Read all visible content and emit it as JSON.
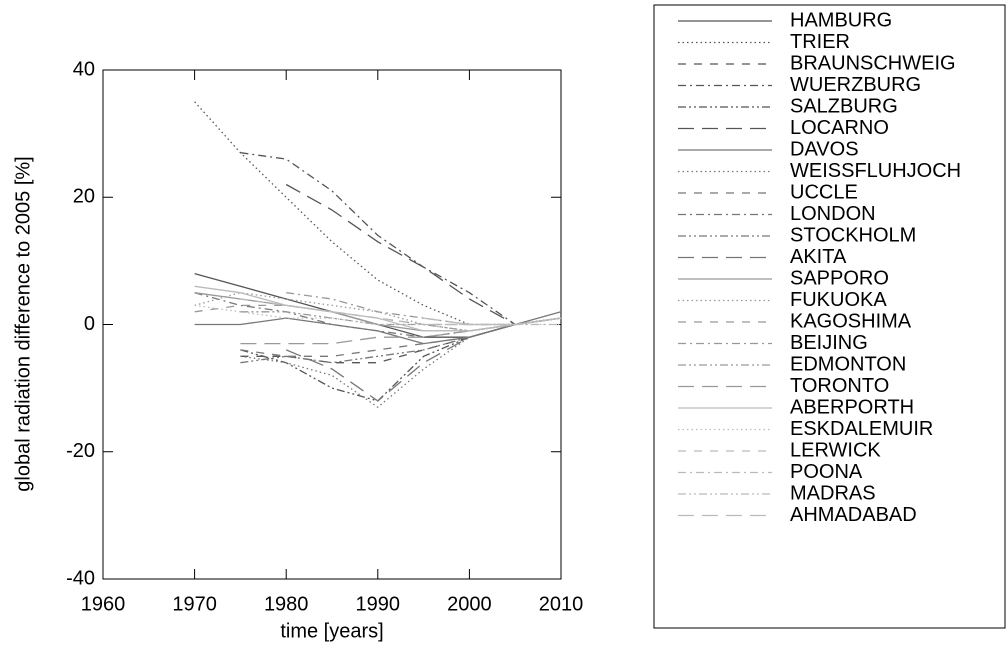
{
  "chart_data": {
    "type": "line",
    "x_label": "time [years]",
    "y_label": "global radiation difference to 2005 [%]",
    "x": [
      1970,
      1975,
      1980,
      1985,
      1990,
      1995,
      2000,
      2005,
      2010
    ],
    "xlim": [
      1960,
      2010
    ],
    "xticks": [
      1960,
      1970,
      1980,
      1990,
      2000,
      2010
    ],
    "ylim": [
      -40,
      40
    ],
    "yticks": [
      -40,
      -20,
      0,
      20,
      40
    ],
    "legend": "outside-right",
    "series": [
      {
        "name": "HAMBURG",
        "color": "#555555",
        "dash": "solid",
        "values": [
          8,
          6,
          4,
          2,
          0,
          -2,
          -2,
          0,
          1
        ]
      },
      {
        "name": "TRIER",
        "color": "#555555",
        "dash": "dotted",
        "values": [
          35,
          27,
          20,
          13,
          7,
          3,
          0,
          0,
          1
        ]
      },
      {
        "name": "BRAUNSCHWEIG",
        "color": "#555555",
        "dash": "dashed",
        "values": [
          null,
          -5,
          -5,
          -6,
          -6,
          -4,
          -2,
          0,
          1
        ]
      },
      {
        "name": "WUERZBURG",
        "color": "#555555",
        "dash": "dashdot",
        "values": [
          null,
          27,
          26,
          21,
          14,
          9,
          5,
          0,
          1
        ]
      },
      {
        "name": "SALZBURG",
        "color": "#555555",
        "dash": "dashdotdot",
        "values": [
          null,
          -4,
          -6,
          -10,
          -12,
          -5,
          -2,
          0,
          1
        ]
      },
      {
        "name": "LOCARNO",
        "color": "#555555",
        "dash": "longdash",
        "values": [
          null,
          null,
          22,
          18,
          13,
          9,
          4,
          0,
          1
        ]
      },
      {
        "name": "DAVOS",
        "color": "#777777",
        "dash": "solid",
        "values": [
          0,
          0,
          1,
          0,
          -1,
          -3,
          -2,
          0,
          2
        ]
      },
      {
        "name": "WEISSFLUHJOCH",
        "color": "#777777",
        "dash": "dotted",
        "values": [
          null,
          -5,
          -6,
          -8,
          -13,
          -7,
          -2,
          0,
          1
        ]
      },
      {
        "name": "UCCLE",
        "color": "#777777",
        "dash": "dashed",
        "values": [
          null,
          -4,
          -5,
          -5,
          -4,
          -3,
          -2,
          0,
          1
        ]
      },
      {
        "name": "LONDON",
        "color": "#777777",
        "dash": "dashdot",
        "values": [
          5,
          3,
          2,
          0,
          -1,
          -2,
          -1,
          0,
          1
        ]
      },
      {
        "name": "STOCKHOLM",
        "color": "#777777",
        "dash": "dashdotdot",
        "values": [
          null,
          -6,
          -5,
          -6,
          -5,
          -4,
          -2,
          0,
          1
        ]
      },
      {
        "name": "AKITA",
        "color": "#777777",
        "dash": "longdash",
        "values": [
          null,
          null,
          -4,
          -7,
          -12,
          -6,
          -2,
          0,
          1
        ]
      },
      {
        "name": "SAPPORO",
        "color": "#999999",
        "dash": "solid",
        "values": [
          5,
          4,
          3,
          2,
          0,
          -1,
          -1,
          0,
          1
        ]
      },
      {
        "name": "FUKUOKA",
        "color": "#999999",
        "dash": "dotted",
        "values": [
          3,
          5,
          4,
          3,
          2,
          0,
          -1,
          0,
          1
        ]
      },
      {
        "name": "KAGOSHIMA",
        "color": "#999999",
        "dash": "dashed",
        "values": [
          2,
          3,
          3,
          2,
          1,
          0,
          0,
          0,
          1
        ]
      },
      {
        "name": "BEIJING",
        "color": "#999999",
        "dash": "dashdot",
        "values": [
          null,
          null,
          5,
          4,
          2,
          1,
          0,
          0,
          1
        ]
      },
      {
        "name": "EDMONTON",
        "color": "#999999",
        "dash": "dashdotdot",
        "values": [
          null,
          2,
          2,
          1,
          0,
          0,
          -1,
          0,
          1
        ]
      },
      {
        "name": "TORONTO",
        "color": "#999999",
        "dash": "longdash",
        "values": [
          null,
          -3,
          -3,
          -3,
          -2,
          -2,
          -1,
          0,
          1
        ]
      },
      {
        "name": "ABERPORTH",
        "color": "#bbbbbb",
        "dash": "solid",
        "values": [
          6,
          5,
          3,
          2,
          1,
          -1,
          -1,
          0,
          1
        ]
      },
      {
        "name": "ESKDALEMUIR",
        "color": "#bbbbbb",
        "dash": "dotted",
        "values": [
          3,
          2,
          1,
          1,
          0,
          0,
          0,
          0,
          0
        ]
      },
      {
        "name": "LERWICK",
        "color": "#bbbbbb",
        "dash": "dashed",
        "values": [
          null,
          4,
          3,
          2,
          1,
          0,
          0,
          0,
          1
        ]
      },
      {
        "name": "POONA",
        "color": "#bbbbbb",
        "dash": "dashdot",
        "values": [
          null,
          null,
          null,
          null,
          null,
          -1,
          -1,
          0,
          0
        ]
      },
      {
        "name": "MADRAS",
        "color": "#bbbbbb",
        "dash": "dashdotdot",
        "values": [
          null,
          null,
          null,
          null,
          null,
          0,
          0,
          0,
          1
        ]
      },
      {
        "name": "AHMADABAD",
        "color": "#bbbbbb",
        "dash": "longdash",
        "values": [
          null,
          null,
          null,
          null,
          null,
          1,
          0,
          0,
          1
        ]
      }
    ]
  }
}
